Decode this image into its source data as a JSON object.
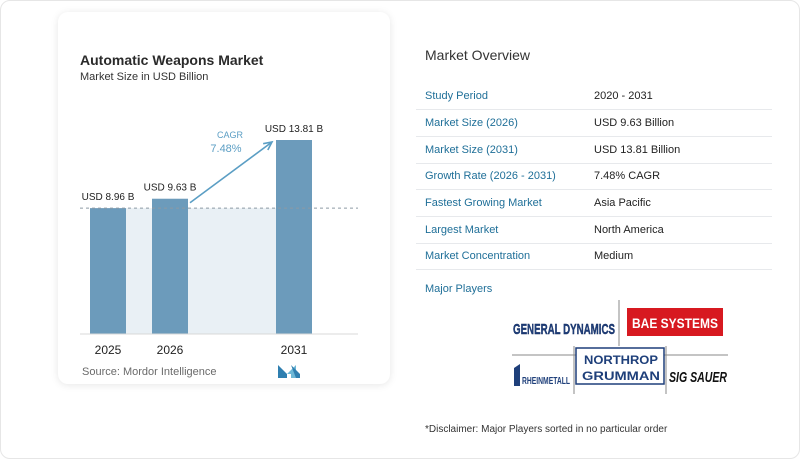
{
  "chart_data": {
    "type": "bar",
    "title": "Automatic Weapons Market",
    "subtitle": "Market Size in USD Billion",
    "categories": [
      "2025",
      "2026",
      "2031"
    ],
    "values": [
      8.96,
      9.63,
      13.81
    ],
    "data_labels": [
      "USD 8.96 B",
      "USD 9.63 B",
      "USD 13.81 B"
    ],
    "cagr_label": "CAGR",
    "cagr_value": "7.48%",
    "ylim": [
      0,
      13.81
    ],
    "grid": false,
    "colors": {
      "bar": "#6c9bbb",
      "shade": "#e9f0f5",
      "arrow": "#5b9ec4",
      "cagr_text": "#5b9ec4"
    }
  },
  "source": "Source:  Mordor Intelligence",
  "overview": {
    "title": "Market Overview",
    "rows": [
      {
        "key": "Study Period",
        "value": "2020 - 2031"
      },
      {
        "key": "Market Size (2026)",
        "value": "USD 9.63 Billion"
      },
      {
        "key": "Market Size (2031)",
        "value": "USD 13.81 Billion"
      },
      {
        "key": "Growth Rate (2026 - 2031)",
        "value": "7.48% CAGR"
      },
      {
        "key": "Fastest Growing Market",
        "value": "Asia Pacific"
      },
      {
        "key": "Largest Market",
        "value": "North America"
      },
      {
        "key": "Market Concentration",
        "value": "Medium"
      }
    ]
  },
  "major_players": {
    "title": "Major Players",
    "logos": [
      "GENERAL DYNAMICS",
      "BAE SYSTEMS",
      "NORTHROP GRUMMAN",
      "RHEINMETALL",
      "SIG SAUER"
    ]
  },
  "disclaimer": "*Disclaimer: Major Players sorted in no particular order"
}
